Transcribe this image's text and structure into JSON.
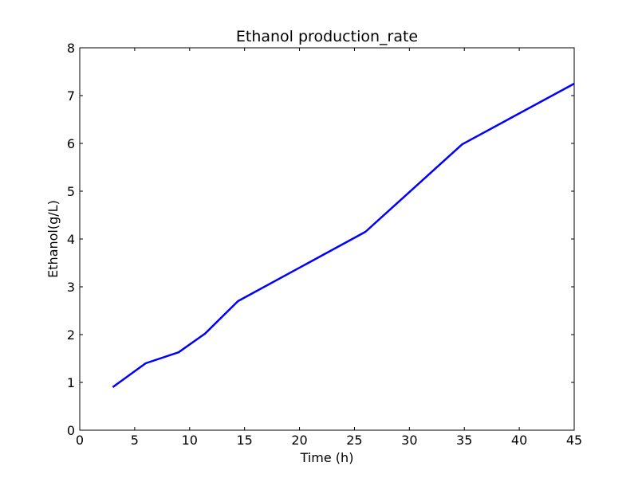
{
  "chart_data": {
    "type": "line",
    "title": "Ethanol production_rate",
    "xlabel": "Time (h)",
    "ylabel": "Ethanol(g/L)",
    "xlim": [
      0,
      45
    ],
    "ylim": [
      0,
      8
    ],
    "xticks": [
      0,
      5,
      10,
      15,
      20,
      25,
      30,
      35,
      40,
      45
    ],
    "yticks": [
      0,
      1,
      2,
      3,
      4,
      5,
      6,
      7,
      8
    ],
    "grid": false,
    "series": [
      {
        "color": "#0000ff",
        "x": [
          3,
          6,
          9,
          11.4,
          14.4,
          26,
          34.8,
          45
        ],
        "y": [
          0.9,
          1.4,
          1.63,
          2.02,
          2.7,
          4.15,
          5.98,
          7.25
        ]
      }
    ]
  }
}
